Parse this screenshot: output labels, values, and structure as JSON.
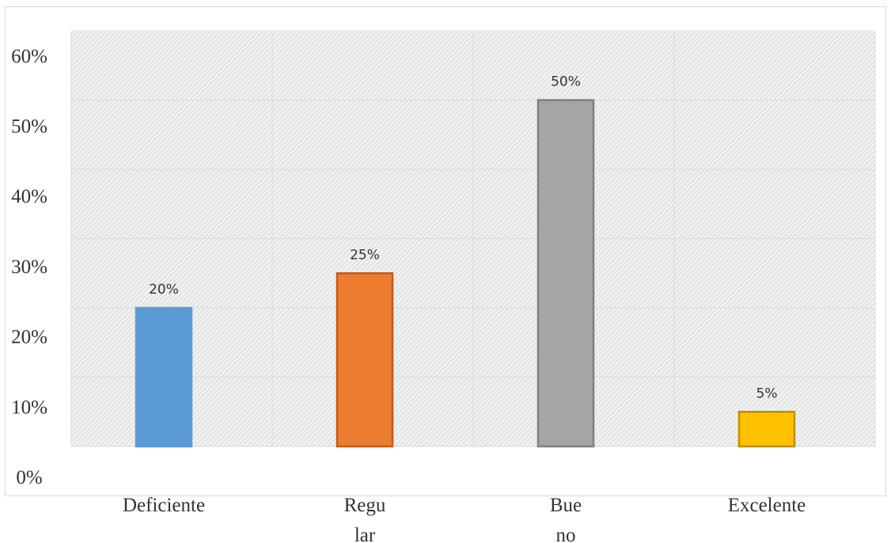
{
  "chart_data": {
    "type": "bar",
    "title": "",
    "xlabel": "",
    "ylabel": "",
    "categories": [
      "Deficiente",
      "Regular",
      "Bueno",
      "Excelente"
    ],
    "category_label_lines": [
      [
        "Deficiente"
      ],
      [
        "Regu",
        "lar"
      ],
      [
        "Bue",
        "no"
      ],
      [
        "Excelente"
      ]
    ],
    "values": [
      20,
      25,
      50,
      5
    ],
    "data_labels": [
      "20%",
      "25%",
      "50%",
      "5%"
    ],
    "bar_colors": [
      "#5b9bd5",
      "#ed7d31",
      "#a5a5a5",
      "#ffc000"
    ],
    "bar_border_colors": [
      "#5b9bd5",
      "#c55a11",
      "#7f7f7f",
      "#bf9000"
    ],
    "y_ticks": [
      0,
      10,
      20,
      30,
      40,
      50,
      60
    ],
    "y_tick_labels": [
      "0%",
      "10%",
      "20%",
      "30%",
      "40%",
      "50%",
      "60%"
    ],
    "ylim": [
      0,
      60
    ],
    "grid": true,
    "legend": "none",
    "plot_background": "hatched light gray"
  }
}
